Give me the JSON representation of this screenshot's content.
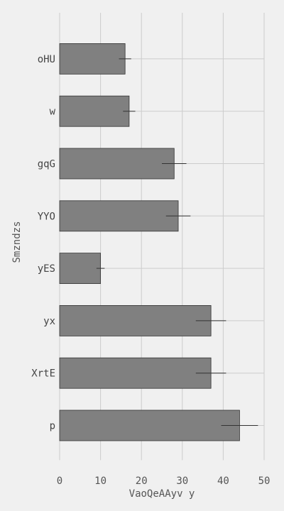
{
  "chart_data": {
    "type": "bar",
    "orientation": "horizontal",
    "categories": [
      "oHU",
      "w",
      "gqG",
      "YYO",
      "yES",
      "yx",
      "XrtE",
      "p"
    ],
    "values": [
      16,
      17,
      28,
      29,
      10,
      37,
      37,
      44
    ],
    "errors": [
      1.5,
      1.5,
      3,
      3,
      1,
      3.7,
      3.7,
      4.5
    ],
    "xlabel": "VaoQeAAyv y",
    "ylabel": "Smzndzs",
    "xlim": [
      0,
      50
    ],
    "xticks": [
      0,
      10,
      20,
      30,
      40,
      50
    ],
    "grid": true,
    "colors": {
      "bar": "#808080",
      "bar_edge": "#333333",
      "grid": "#cccccc",
      "error": "#333333",
      "background": "#f0f0f0"
    }
  }
}
